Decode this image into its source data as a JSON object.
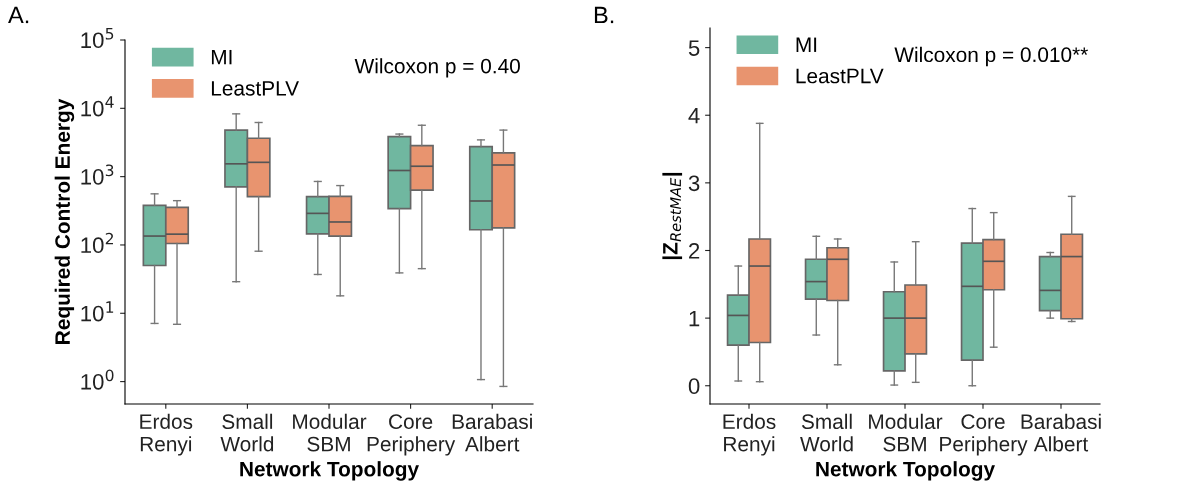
{
  "chart_data": [
    {
      "type": "box",
      "xlabel": "Network Topology",
      "ylabel": "Required Control Energy",
      "log": "y",
      "legend": "top left",
      "grid": false,
      "categories": [
        "Erdos\nRenyi",
        "Small\nWorld",
        "Modular\nSBM",
        "Core\nPeriphery",
        "Barabasi\nAlbert"
      ],
      "ylim": [
        0.47,
        100000
      ],
      "yticks": [
        {
          "value": 1,
          "label": "10$^{0}$"
        },
        {
          "value": 10,
          "label": "10$^{1}$"
        },
        {
          "value": 100,
          "label": "10$^{2}$"
        },
        {
          "value": 1000,
          "label": "10$^{3}$"
        },
        {
          "value": 10000,
          "label": "10$^{4}$"
        },
        {
          "value": 100000,
          "label": "10$^{5}$"
        }
      ],
      "annotations": [
        "A.",
        "Wilcoxon p = 0.40"
      ],
      "series": [
        {
          "name": "MI",
          "color": "#70b7a0",
          "boxes": [
            {
              "low": 7.1,
              "q1": 50,
              "median": 135,
              "q3": 380,
              "high": 560
            },
            {
              "low": 29,
              "q1": 710,
              "median": 1540,
              "q3": 4800,
              "high": 8300
            },
            {
              "low": 37,
              "q1": 145,
              "median": 290,
              "q3": 510,
              "high": 850
            },
            {
              "low": 39,
              "q1": 340,
              "median": 1230,
              "q3": 3850,
              "high": 4200
            },
            {
              "low": 1.07,
              "q1": 167,
              "median": 440,
              "q3": 2750,
              "high": 3450
            }
          ]
        },
        {
          "name": "LeastPLV",
          "color": "#e8946f",
          "boxes": [
            {
              "low": 6.9,
              "q1": 105,
              "median": 144,
              "q3": 355,
              "high": 445
            },
            {
              "low": 81,
              "q1": 510,
              "median": 1620,
              "q3": 3650,
              "high": 6200
            },
            {
              "low": 18,
              "q1": 135,
              "median": 217,
              "q3": 515,
              "high": 740
            },
            {
              "low": 45,
              "q1": 635,
              "median": 1420,
              "q3": 2850,
              "high": 5650
            },
            {
              "low": 0.85,
              "q1": 178,
              "median": 1480,
              "q3": 2230,
              "high": 4800
            }
          ]
        }
      ]
    },
    {
      "type": "box",
      "xlabel": "Network Topology",
      "ylabel": "|Z$_{RestMAE}$|",
      "legend": "top left",
      "grid": false,
      "categories": [
        "Erdos\nRenyi",
        "Small\nWorld",
        "Modular\nSBM",
        "Core\nPeriphery",
        "Barabasi\nAlbert"
      ],
      "ylim": [
        -0.27,
        5.29
      ],
      "yticks": [
        0,
        1,
        2,
        3,
        4,
        5
      ],
      "annotations": [
        "B.",
        "Wilcoxon p = 0.010**"
      ],
      "series": [
        {
          "name": "MI",
          "color": "#70b7a0",
          "boxes": [
            {
              "low": 0.07,
              "q1": 0.6,
              "median": 1.04,
              "q3": 1.34,
              "high": 1.77
            },
            {
              "low": 0.75,
              "q1": 1.28,
              "median": 1.54,
              "q3": 1.87,
              "high": 2.21
            },
            {
              "low": 0.01,
              "q1": 0.22,
              "median": 1.0,
              "q3": 1.39,
              "high": 1.83
            },
            {
              "low": 0.0,
              "q1": 0.38,
              "median": 1.47,
              "q3": 2.11,
              "high": 2.62
            },
            {
              "low": 1.0,
              "q1": 1.11,
              "median": 1.41,
              "q3": 1.91,
              "high": 1.97
            }
          ]
        },
        {
          "name": "LeastPLV",
          "color": "#e8946f",
          "boxes": [
            {
              "low": 0.06,
              "q1": 0.64,
              "median": 1.77,
              "q3": 2.17,
              "high": 3.88
            },
            {
              "low": 0.31,
              "q1": 1.26,
              "median": 1.87,
              "q3": 2.04,
              "high": 2.17
            },
            {
              "low": 0.05,
              "q1": 0.47,
              "median": 1.0,
              "q3": 1.49,
              "high": 2.13
            },
            {
              "low": 0.57,
              "q1": 1.42,
              "median": 1.84,
              "q3": 2.16,
              "high": 2.56
            },
            {
              "low": 0.95,
              "q1": 0.99,
              "median": 1.91,
              "q3": 2.24,
              "high": 2.8
            }
          ]
        }
      ]
    }
  ]
}
